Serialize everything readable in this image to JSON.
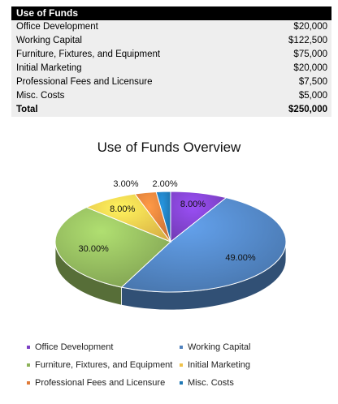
{
  "table": {
    "title": "Use of Funds",
    "rows": [
      {
        "label": "Office Development",
        "value": "$20,000"
      },
      {
        "label": "Working Capital",
        "value": "$122,500"
      },
      {
        "label": "Furniture, Fixtures, and Equipment",
        "value": "$75,000"
      },
      {
        "label": "Initial Marketing",
        "value": "$20,000"
      },
      {
        "label": "Professional Fees and Licensure",
        "value": "$7,500"
      },
      {
        "label": "Misc. Costs",
        "value": "$5,000"
      }
    ],
    "total": {
      "label": "Total",
      "value": "$250,000"
    }
  },
  "chart_data": {
    "type": "pie",
    "title": "Use of Funds Overview",
    "categories": [
      "Office Development",
      "Working Capital",
      "Furniture, Fixtures, and Equipment",
      "Initial Marketing",
      "Professional Fees and Licensure",
      "Misc. Costs"
    ],
    "values": [
      8,
      49,
      30,
      8,
      3,
      2
    ],
    "labels": [
      "8.00%",
      "49.00%",
      "30.00%",
      "8.00%",
      "3.00%",
      "2.00%"
    ],
    "colors": [
      "#7b3fc4",
      "#4f81bd",
      "#8db25a",
      "#f0c24a",
      "#e07b39",
      "#1f78b4"
    ],
    "legend_position": "bottom",
    "style": "3d"
  }
}
